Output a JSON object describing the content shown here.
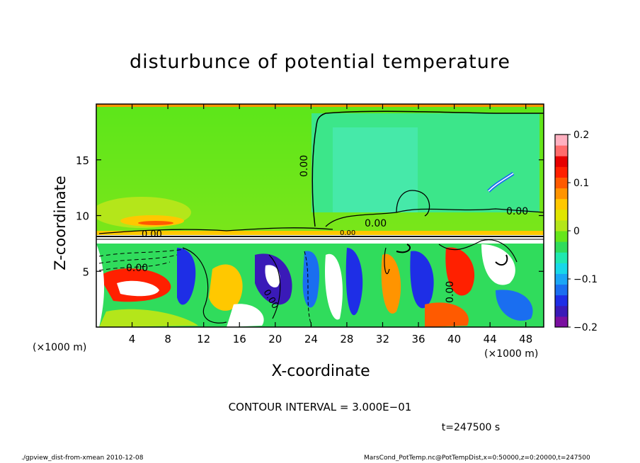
{
  "chart_data": {
    "type": "heatmap",
    "title": "disturbunce of potential temperature",
    "xlabel": "X-coordinate",
    "ylabel": "Z-coordinate",
    "x_unit": "(×1000 m)",
    "y_unit": "(×1000 m)",
    "x_ticks": [
      4,
      8,
      12,
      16,
      20,
      24,
      28,
      32,
      36,
      40,
      44,
      48
    ],
    "y_ticks": [
      5,
      10,
      15
    ],
    "xlim": [
      0,
      50
    ],
    "ylim": [
      0,
      20
    ],
    "colorbar": {
      "ticks": [
        0.2,
        0.1,
        0,
        -0.1,
        -0.2
      ],
      "tick_labels": [
        "0.2",
        "0.1",
        "0",
        "−0.1",
        "−0.2"
      ],
      "range": [
        -0.2,
        0.2
      ],
      "colors": [
        "#7a0fa0",
        "#3a1ab8",
        "#1e2ee6",
        "#1a6ef0",
        "#1aa6f5",
        "#18d8e8",
        "#20e8b0",
        "#30dc5c",
        "#66e61a",
        "#b4e61a",
        "#e0e600",
        "#ffc800",
        "#ff9400",
        "#ff5a00",
        "#ff2000",
        "#e60000",
        "#ff6b6b",
        "#ffb0c0"
      ]
    },
    "contour_labels": [
      "0.00",
      "0.00",
      "0.00",
      "0.00",
      "0.00",
      "0.00",
      "0.00",
      "0.00"
    ],
    "contour_interval_text": "CONTOUR INTERVAL = 3.000E−01",
    "time_text": "t=247500  s",
    "footer_left": "./gpview_dist-from-xmean   2010-12-08",
    "footer_right": "MarsCond_PotTemp.nc@PotTempDist,x=0:50000,z=0:20000,t=247500"
  }
}
